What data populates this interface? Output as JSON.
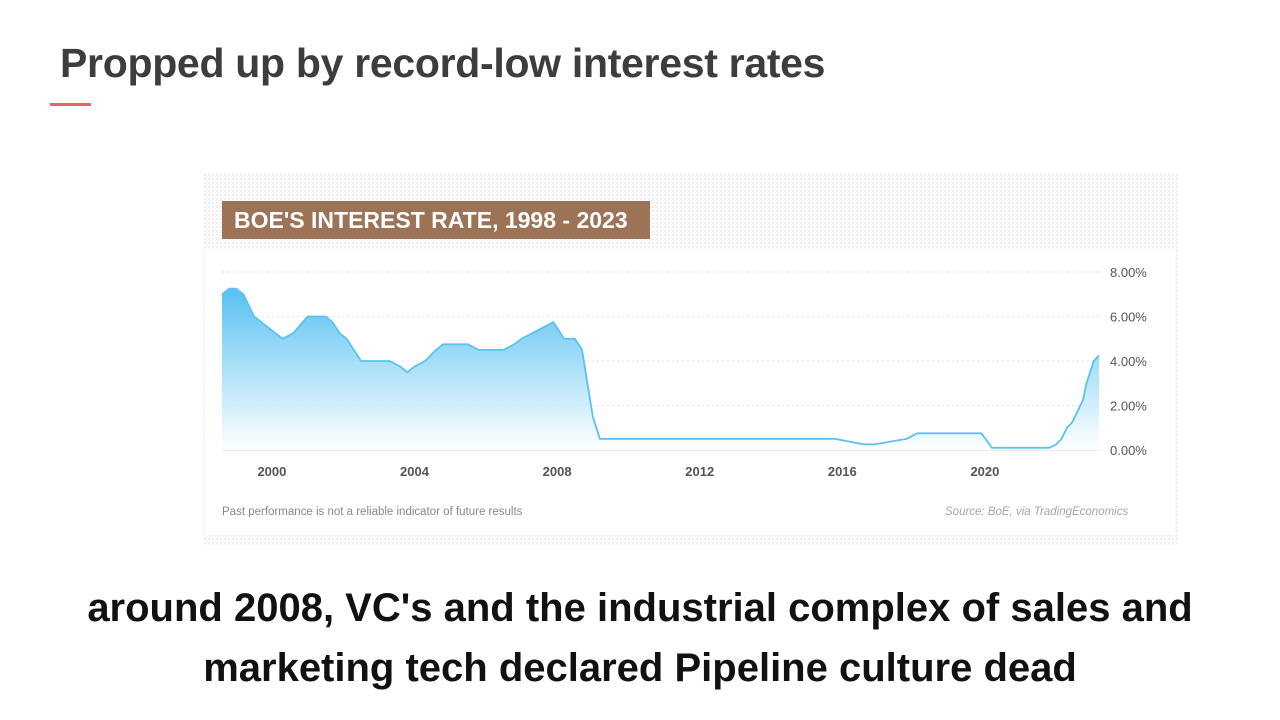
{
  "slide": {
    "title": "Propped up by record-low interest rates",
    "caption": "around 2008, VC's and the industrial complex of sales and marketing tech declared Pipeline culture dead"
  },
  "colors": {
    "accent": "#e8636b",
    "banner": "#9c7356",
    "line": "#5bc2f0",
    "fill_top": "#4fbdf0",
    "fill_bottom": "#ffffff"
  },
  "chart_data": {
    "type": "area",
    "title": "BOE'S INTEREST RATE, 1998 - 2023",
    "xlabel": "",
    "ylabel": "",
    "xlim": [
      1998.6,
      2023.2
    ],
    "ylim": [
      0,
      8
    ],
    "x_ticks": [
      2000,
      2004,
      2008,
      2012,
      2016,
      2020
    ],
    "x_tick_labels": [
      "2000",
      "2004",
      "2008",
      "2012",
      "2016",
      "2020"
    ],
    "y_ticks": [
      0,
      2,
      4,
      6,
      8
    ],
    "y_tick_labels": [
      "0.00%",
      "2.00%",
      "4.00%",
      "6.00%",
      "8.00%"
    ],
    "y_axis_position": "right",
    "grid": true,
    "legend": "none",
    "footnote": "Past performance is not a reliable indicator of future results",
    "source": "Source: BoE, via TradingEconomics",
    "series": [
      {
        "x": [
          1998.6,
          1998.8,
          1999.0,
          1999.2,
          1999.5,
          1999.9,
          2000.3,
          2000.6,
          2001.0,
          2001.2,
          2001.5,
          2001.7,
          2001.9,
          2002.1,
          2002.5,
          2003.0,
          2003.3,
          2003.6,
          2003.8,
          2004.0,
          2004.3,
          2004.6,
          2004.8,
          2005.5,
          2005.8,
          2006.5,
          2006.8,
          2007.0,
          2007.3,
          2007.6,
          2007.9,
          2008.2,
          2008.5,
          2008.7,
          2008.85,
          2009.0,
          2009.2,
          2012.0,
          2015.8,
          2016.6,
          2016.9,
          2017.8,
          2018.1,
          2019.9,
          2020.2,
          2020.7,
          2021.8,
          2022.0,
          2022.15,
          2022.3,
          2022.45,
          2022.6,
          2022.75,
          2022.85,
          2022.95,
          2023.05,
          2023.2
        ],
        "y": [
          7.0,
          7.25,
          7.25,
          7.0,
          6.0,
          5.5,
          5.0,
          5.25,
          6.0,
          6.0,
          6.0,
          5.75,
          5.25,
          5.0,
          4.0,
          4.0,
          4.0,
          3.75,
          3.5,
          3.75,
          4.0,
          4.5,
          4.75,
          4.75,
          4.5,
          4.5,
          4.75,
          5.0,
          5.25,
          5.5,
          5.75,
          5.0,
          5.0,
          4.5,
          3.0,
          1.5,
          0.5,
          0.5,
          0.5,
          0.25,
          0.25,
          0.5,
          0.75,
          0.75,
          0.1,
          0.1,
          0.1,
          0.25,
          0.5,
          1.0,
          1.25,
          1.75,
          2.25,
          3.0,
          3.5,
          4.0,
          4.25
        ]
      }
    ]
  }
}
